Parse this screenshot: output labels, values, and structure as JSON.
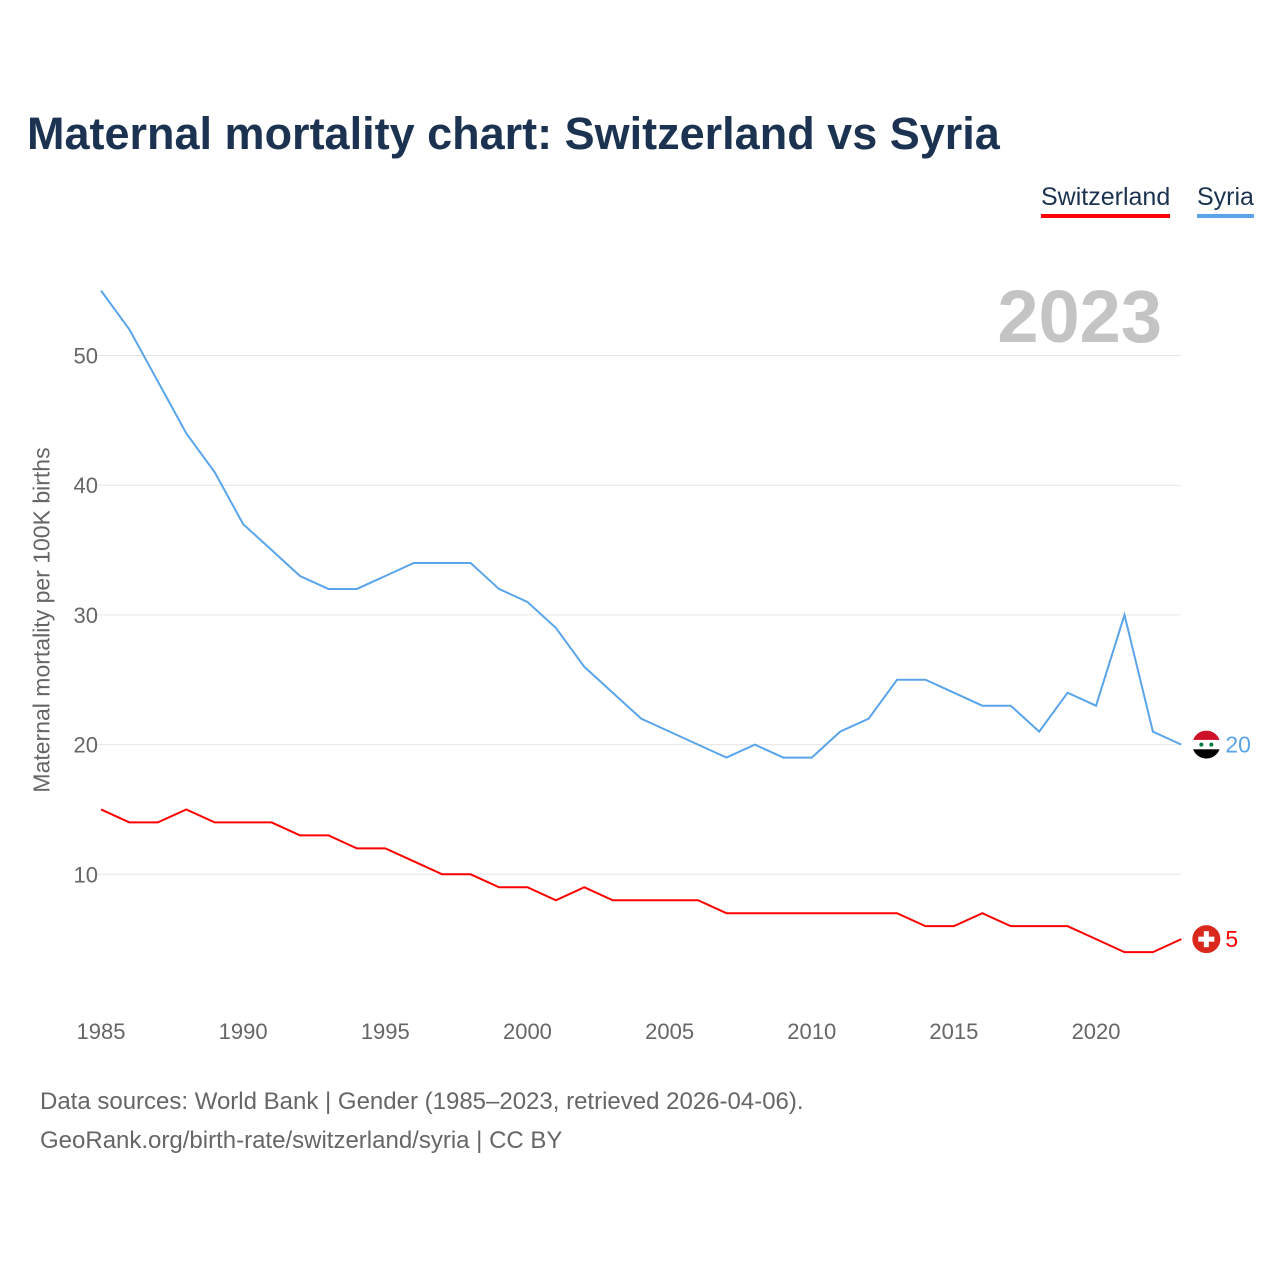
{
  "title": "Maternal mortality chart: Switzerland vs Syria",
  "year_display": "2023",
  "legend": [
    {
      "label": "Switzerland",
      "color": "#ff0000"
    },
    {
      "label": "Syria",
      "color": "#5aa5ea"
    }
  ],
  "sources": {
    "line1": "Data sources: World Bank | Gender (1985–2023, retrieved 2026-04-06).",
    "line2": "GeoRank.org/birth-rate/switzerland/syria | CC BY"
  },
  "chart_data": {
    "type": "line",
    "title": "Maternal mortality chart: Switzerland vs Syria",
    "xlabel": "",
    "ylabel": "Maternal mortality per 100K births",
    "xlim": [
      1985,
      2023
    ],
    "ylim": [
      0,
      55
    ],
    "xticks": [
      1985,
      1990,
      1995,
      2000,
      2005,
      2010,
      2015,
      2020
    ],
    "yticks": [
      10,
      20,
      30,
      40,
      50
    ],
    "grid": true,
    "legend_position": "top-right",
    "x": [
      1985,
      1986,
      1987,
      1988,
      1989,
      1990,
      1991,
      1992,
      1993,
      1994,
      1995,
      1996,
      1997,
      1998,
      1999,
      2000,
      2001,
      2002,
      2003,
      2004,
      2005,
      2006,
      2007,
      2008,
      2009,
      2010,
      2011,
      2012,
      2013,
      2014,
      2015,
      2016,
      2017,
      2018,
      2019,
      2020,
      2021,
      2022,
      2023
    ],
    "series": [
      {
        "name": "Switzerland",
        "color": "#ff0000",
        "end_label": "5",
        "values": [
          15,
          14,
          14,
          15,
          14,
          14,
          14,
          13,
          13,
          12,
          12,
          11,
          10,
          10,
          9,
          9,
          8,
          9,
          8,
          8,
          8,
          8,
          7,
          7,
          7,
          7,
          7,
          7,
          7,
          6,
          6,
          7,
          6,
          6,
          6,
          5,
          4,
          4,
          5
        ]
      },
      {
        "name": "Syria",
        "color": "#5aa5ea",
        "end_label": "20",
        "values": [
          55,
          52,
          48,
          44,
          41,
          37,
          35,
          33,
          32,
          32,
          33,
          34,
          34,
          34,
          32,
          31,
          29,
          26,
          24,
          22,
          21,
          20,
          19,
          20,
          19,
          19,
          21,
          22,
          25,
          25,
          24,
          23,
          23,
          21,
          24,
          23,
          30,
          21,
          20
        ]
      }
    ]
  }
}
